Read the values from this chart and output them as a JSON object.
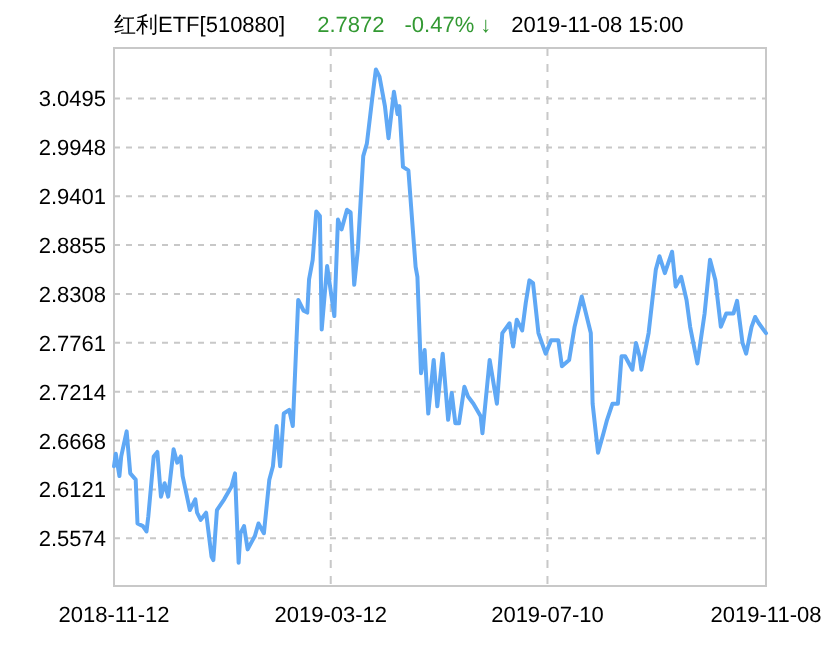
{
  "chart_data": {
    "type": "line",
    "title": "红利ETF[510880]",
    "annotations": [
      "2.7872",
      "-0.47% ↓",
      "2019-11-08 15:00"
    ],
    "xlim": [
      "2018-11-12",
      "2019-11-08"
    ],
    "xticks": [
      "2018-11-12",
      "2019-03-12",
      "2019-07-10",
      "2019-11-08"
    ],
    "ylim": [
      2.504,
      3.106
    ],
    "yticks": [
      2.5574,
      2.6121,
      2.6668,
      2.7214,
      2.7761,
      2.8308,
      2.8855,
      2.9401,
      2.9948,
      3.0495
    ],
    "grid": true,
    "line_style": "solid",
    "marker": "none",
    "series": [
      {
        "color": "#5fa8f5",
        "x": [
          "2018-11-12",
          "2018-11-13",
          "2018-11-15",
          "2018-11-16",
          "2018-11-19",
          "2018-11-21",
          "2018-11-24",
          "2018-11-25",
          "2018-11-28",
          "2018-11-30",
          "2018-12-01",
          "2018-12-04",
          "2018-12-06",
          "2018-12-08",
          "2018-12-10",
          "2018-12-12",
          "2018-12-15",
          "2018-12-17",
          "2018-12-19",
          "2018-12-20",
          "2018-12-24",
          "2018-12-27",
          "2018-12-28",
          "2018-12-30",
          "2019-01-02",
          "2019-01-05",
          "2019-01-06",
          "2019-01-08",
          "2019-01-12",
          "2019-01-14",
          "2019-01-16",
          "2019-01-18",
          "2019-01-20",
          "2019-01-21",
          "2019-01-23",
          "2019-01-25",
          "2019-01-29",
          "2019-01-31",
          "2019-02-03",
          "2019-02-06",
          "2019-02-08",
          "2019-02-10",
          "2019-02-12",
          "2019-02-14",
          "2019-02-17",
          "2019-02-19",
          "2019-02-22",
          "2019-02-25",
          "2019-02-27",
          "2019-02-28",
          "2019-03-02",
          "2019-03-04",
          "2019-03-06",
          "2019-03-07",
          "2019-03-10",
          "2019-03-14",
          "2019-03-16",
          "2019-03-18",
          "2019-03-21",
          "2019-03-23",
          "2019-03-25",
          "2019-03-27",
          "2019-03-30",
          "2019-04-01",
          "2019-04-04",
          "2019-04-06",
          "2019-04-08",
          "2019-04-11",
          "2019-04-13",
          "2019-04-16",
          "2019-04-18",
          "2019-04-19",
          "2019-04-21",
          "2019-04-24",
          "2019-04-28",
          "2019-04-29",
          "2019-05-01",
          "2019-05-03",
          "2019-05-05",
          "2019-05-08",
          "2019-05-10",
          "2019-05-13",
          "2019-05-16",
          "2019-05-18",
          "2019-05-20",
          "2019-05-22",
          "2019-05-25",
          "2019-05-27",
          "2019-05-30",
          "2019-06-03",
          "2019-06-04",
          "2019-06-08",
          "2019-06-12",
          "2019-06-15",
          "2019-06-19",
          "2019-06-21",
          "2019-06-23",
          "2019-06-26",
          "2019-06-28",
          "2019-06-30",
          "2019-07-02",
          "2019-07-05",
          "2019-07-09",
          "2019-07-12",
          "2019-07-16",
          "2019-07-18",
          "2019-07-22",
          "2019-07-25",
          "2019-07-29",
          "2019-08-03",
          "2019-08-04",
          "2019-08-07",
          "2019-08-10",
          "2019-08-12",
          "2019-08-15",
          "2019-08-18",
          "2019-08-20",
          "2019-08-22",
          "2019-08-26",
          "2019-08-28",
          "2019-08-30",
          "2019-08-31",
          "2019-09-04",
          "2019-09-08",
          "2019-09-10",
          "2019-09-13",
          "2019-09-17",
          "2019-09-19",
          "2019-09-22",
          "2019-09-25",
          "2019-09-27",
          "2019-10-01",
          "2019-10-05",
          "2019-10-08",
          "2019-10-11",
          "2019-10-14",
          "2019-10-17",
          "2019-10-21",
          "2019-10-23",
          "2019-10-26",
          "2019-10-28",
          "2019-10-31",
          "2019-11-02",
          "2019-11-04",
          "2019-11-08"
        ],
        "values": [
          2.638,
          2.652,
          2.627,
          2.649,
          2.677,
          2.63,
          2.623,
          2.574,
          2.571,
          2.565,
          2.582,
          2.649,
          2.654,
          2.604,
          2.619,
          2.604,
          2.657,
          2.642,
          2.649,
          2.627,
          2.589,
          2.601,
          2.586,
          2.578,
          2.586,
          2.537,
          2.533,
          2.589,
          2.601,
          2.608,
          2.615,
          2.63,
          2.53,
          2.563,
          2.571,
          2.545,
          2.56,
          2.574,
          2.563,
          2.623,
          2.638,
          2.683,
          2.638,
          2.697,
          2.701,
          2.683,
          2.824,
          2.812,
          2.81,
          2.847,
          2.869,
          2.923,
          2.918,
          2.791,
          2.862,
          2.806,
          2.914,
          2.903,
          2.925,
          2.922,
          2.841,
          2.88,
          2.985,
          2.999,
          3.05,
          3.082,
          3.074,
          3.041,
          3.005,
          3.057,
          3.032,
          3.041,
          2.973,
          2.969,
          2.861,
          2.85,
          2.742,
          2.768,
          2.697,
          2.757,
          2.705,
          2.764,
          2.69,
          2.72,
          2.686,
          2.686,
          2.727,
          2.716,
          2.708,
          2.694,
          2.675,
          2.757,
          2.708,
          2.787,
          2.798,
          2.772,
          2.802,
          2.79,
          2.821,
          2.846,
          2.843,
          2.787,
          2.764,
          2.779,
          2.779,
          2.75,
          2.757,
          2.794,
          2.828,
          2.787,
          2.708,
          2.653,
          2.675,
          2.69,
          2.708,
          2.708,
          2.761,
          2.761,
          2.746,
          2.776,
          2.761,
          2.746,
          2.787,
          2.858,
          2.873,
          2.854,
          2.878,
          2.839,
          2.85,
          2.824,
          2.794,
          2.753,
          2.809,
          2.869,
          2.846,
          2.794,
          2.809,
          2.809,
          2.823,
          2.776,
          2.764,
          2.794,
          2.805,
          2.798,
          2.787
        ]
      }
    ]
  }
}
